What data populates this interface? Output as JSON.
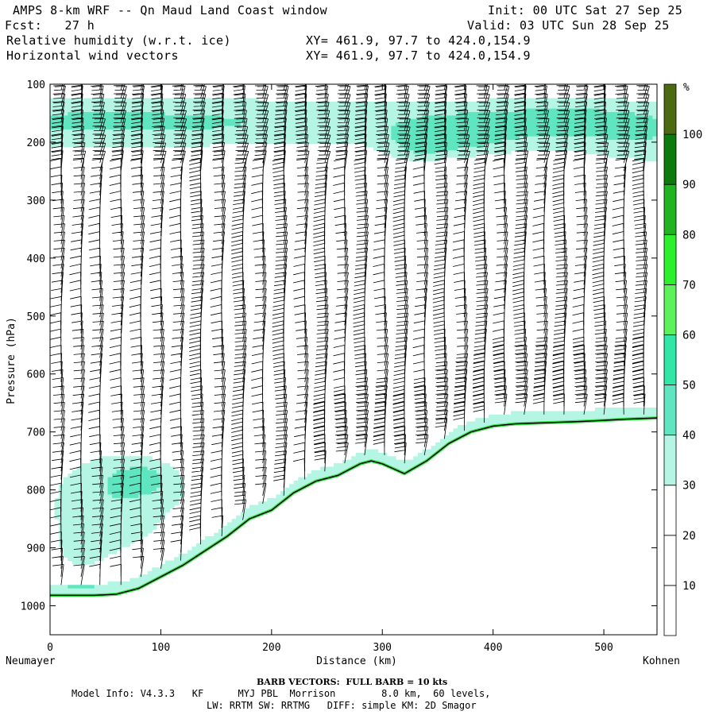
{
  "header": {
    "title": "AMPS 8-km WRF -- Qn Maud Land Coast window",
    "init": "Init: 00 UTC Sat 27 Sep 25",
    "fcst": "Fcst:   27 h",
    "valid": "Valid: 03 UTC Sun 28 Sep 25",
    "field1": "Relative humidity (w.r.t. ice)",
    "field1_xy": "XY= 461.9, 97.7 to 424.0,154.9",
    "field2": "Horizontal wind vectors",
    "field2_xy": "XY= 461.9, 97.7 to 424.0,154.9"
  },
  "footer": {
    "barb_note": "BARB VECTORS:  FULL BARB = 10 kts",
    "model_line1": "Model Info: V4.3.3   KF      MYJ PBL  Morrison        8.0 km,  60 levels,",
    "model_line2": "LW: RRTM SW: RRTMG   DIFF: simple KM: 2D Smagor"
  },
  "chart_data": {
    "type": "heatmap",
    "title": "Relative humidity (w.r.t. ice) and horizontal wind vectors",
    "xlabel": "Distance (km)",
    "ylabel": "Pressure (hPa)",
    "xlim": [
      0,
      548
    ],
    "ylim": [
      1050,
      100
    ],
    "x_ticks": [
      0,
      100,
      200,
      300,
      400,
      500
    ],
    "y_ticks": [
      100,
      200,
      300,
      400,
      500,
      600,
      700,
      800,
      900,
      1000
    ],
    "endpoint_left": "Neumayer",
    "endpoint_right": "Kohnen",
    "colorbar": {
      "unit": "%",
      "labels": [
        10,
        20,
        30,
        40,
        50,
        60,
        70,
        80,
        90,
        100
      ],
      "bins": [
        {
          "max": 10,
          "color": "#ffffff"
        },
        {
          "max": 20,
          "color": "#ffffff"
        },
        {
          "max": 30,
          "color": "#ffffff"
        },
        {
          "max": 40,
          "color": "#b4f5e4"
        },
        {
          "max": 50,
          "color": "#5fe6c0"
        },
        {
          "max": 60,
          "color": "#30e7a8"
        },
        {
          "max": 70,
          "color": "#5cf25c"
        },
        {
          "max": 80,
          "color": "#2cf02c"
        },
        {
          "max": 90,
          "color": "#20b420"
        },
        {
          "max": 100,
          "color": "#0d7a0d"
        },
        {
          "max": 110,
          "color": "#4c6a12"
        }
      ]
    },
    "terrain_surface": {
      "x_km": [
        0,
        40,
        60,
        80,
        100,
        120,
        140,
        160,
        180,
        200,
        220,
        240,
        260,
        280,
        290,
        300,
        320,
        340,
        360,
        380,
        400,
        420,
        450,
        480,
        520,
        548
      ],
      "pressure_hPa": [
        982,
        982,
        980,
        970,
        950,
        930,
        905,
        880,
        850,
        835,
        805,
        785,
        775,
        755,
        750,
        755,
        772,
        750,
        720,
        700,
        690,
        686,
        684,
        682,
        678,
        676
      ]
    },
    "wind_barb_columns_km": [
      10,
      28,
      45,
      64,
      82,
      100,
      118,
      136,
      155,
      174,
      192,
      211,
      230,
      248,
      266,
      284,
      302,
      320,
      338,
      356,
      374,
      392,
      410,
      428,
      446,
      464,
      482,
      500,
      518,
      536
    ]
  }
}
